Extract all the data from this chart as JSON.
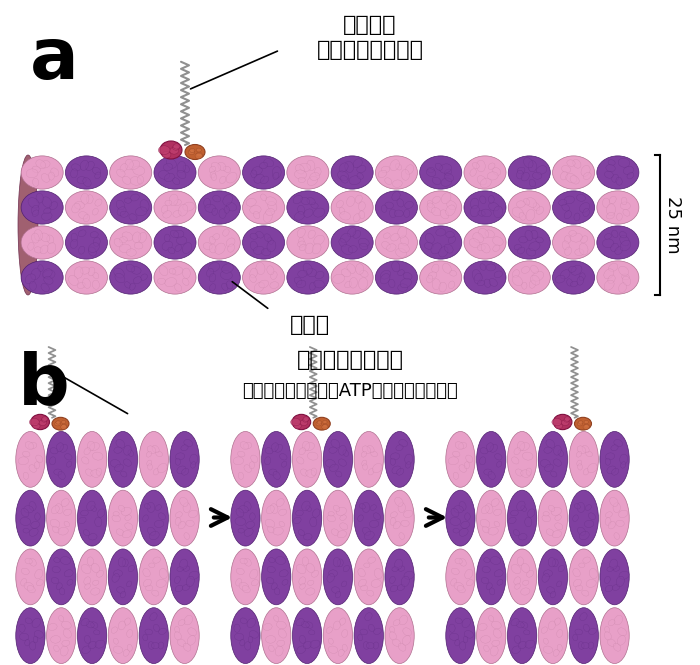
{
  "bg_color": "#ffffff",
  "panel_a_label": "a",
  "panel_b_label": "b",
  "label_a_font": 52,
  "label_b_font": 52,
  "kinesin_label": "キネシン\n生体分子モーター",
  "microtubule_label_a": "微小管",
  "motor_domain_label": "モータードメイン",
  "motor_domain_sub": "（微小管と結合し、ATPを消費して動く）",
  "size_label": "25 nm",
  "pink_color": "#e8a0c8",
  "purple_color": "#8040a0",
  "dark_pink": "#c06090",
  "dark_purple": "#602080",
  "kinesin_pink": "#c02060",
  "kinesin_orange": "#c06030",
  "coil_color": "#909090",
  "arrow_color": "#000000",
  "text_color": "#000000",
  "annotation_line_color": "#000000"
}
